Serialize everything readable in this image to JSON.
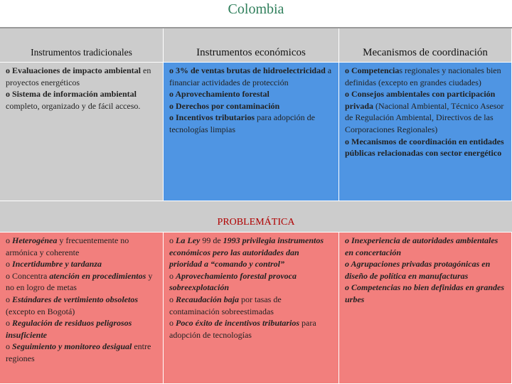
{
  "title": "Colombia",
  "table": {
    "header": [
      "Instrumentos tradicionales",
      "Instrumentos económicos",
      "Mecanismos de coordinación"
    ],
    "rows": [
      [
        [
          [
            "o Evaluaciones de impacto ambiental",
            " en proyectos energéticos"
          ],
          [
            "o Sistema de información ambiental",
            " completo, organizado y de fácil acceso."
          ]
        ],
        [
          [
            "o 3% de ventas brutas de hidroelectricidad",
            " a financiar actividades de protección"
          ],
          [
            "o Aprovechamiento forestal"
          ],
          [
            "o Derechos por contaminación"
          ],
          [
            "o Incentivos tributarios",
            " para adopción de tecnologías limpias"
          ]
        ],
        [
          [
            "o Competencia",
            "s regionales y nacionales bien definidas (excepto en grandes ciudades)"
          ],
          [
            "o Consejos ambientales con participación privada",
            " (Nacional Ambiental, Técnico Asesor de Regulación Ambiental,  Directivos de las Corporaciones Regionales)"
          ],
          [
            "o Mecanismos de coordinación en entidades públicas relacionadas con sector energético"
          ]
        ]
      ]
    ],
    "section": "PROBLEMÁTICA",
    "problems": [
      [
        [
          "o ",
          "Heterogénea",
          " y frecuentemente no armónica y coherente"
        ],
        [
          "o ",
          "Incertidumbre y tardanza"
        ],
        [
          "o Concentra ",
          "atención en procedimientos",
          " y no en logro de metas"
        ],
        [
          "o ",
          "Estándares de vertimiento obsoletos",
          " (excepto en Bogotá)"
        ],
        [
          "o ",
          "Regulación de residuos peligrosos insuficiente"
        ],
        [
          "o ",
          "Seguimiento y monitoreo desigual",
          " entre regiones"
        ]
      ],
      [
        [
          "o ",
          "La Ley",
          " 99 de ",
          "1993 privilegia instrumentos económicos pero las autoridades dan prioridad a “comando y control”"
        ],
        [
          "o ",
          "Aprovechamiento forestal provoca sobreexplotación"
        ],
        [
          "o ",
          "Recaudación baja",
          " por tasas de contaminación sobreestimadas"
        ],
        [
          "o ",
          "Poco éxito de incentivos tributarios",
          " para adopción de tecnologías"
        ]
      ],
      [
        [
          "o Inexperiencia de autoridades ambientales en concertación"
        ],
        [
          "o Agrupaciones privadas protagónicas en diseño de política en manufacturas"
        ],
        [
          "o Competencias no bien definidas en grandes urbes"
        ]
      ]
    ]
  }
}
